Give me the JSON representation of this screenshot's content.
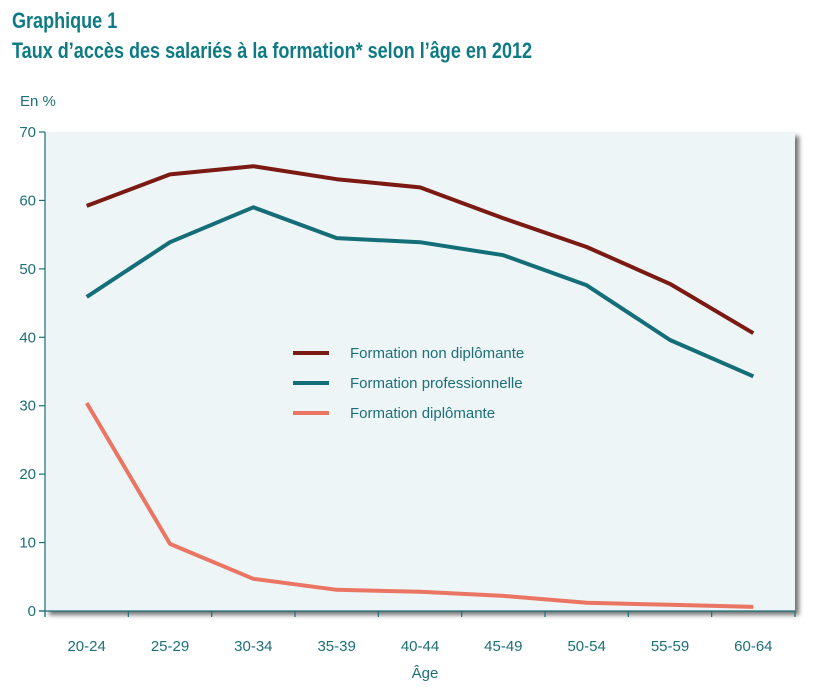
{
  "header": {
    "figure_label": "Graphique 1",
    "title": "Taux d’accès des salariés à la formation* selon l’âge en 2012"
  },
  "chart_data": {
    "type": "line",
    "title": "Taux d’accès des salariés à la formation* selon l’âge en 2012",
    "ylabel": "En %",
    "xlabel": "Âge",
    "ylim": [
      0,
      70
    ],
    "yticks": [
      0,
      10,
      20,
      30,
      40,
      50,
      60,
      70
    ],
    "categories": [
      "20-24",
      "25-29",
      "30-34",
      "35-39",
      "40-44",
      "45-49",
      "50-54",
      "55-59",
      "60-64"
    ],
    "legend_position": "center",
    "grid": false,
    "plot_background": "#eef5f6",
    "series": [
      {
        "name": "Formation non diplômante",
        "color": "#7a1a12",
        "values": [
          59.2,
          63.8,
          65.0,
          63.1,
          61.9,
          57.4,
          53.2,
          47.8,
          40.6
        ]
      },
      {
        "name": "Formation professionnelle",
        "color": "#146e78",
        "values": [
          45.9,
          53.9,
          59.0,
          54.5,
          53.9,
          52.0,
          47.6,
          39.6,
          34.3
        ]
      },
      {
        "name": "Formation diplômante",
        "color": "#ea7563",
        "values": [
          30.4,
          9.8,
          4.7,
          3.1,
          2.8,
          2.2,
          1.2,
          0.9,
          0.6
        ]
      }
    ]
  }
}
